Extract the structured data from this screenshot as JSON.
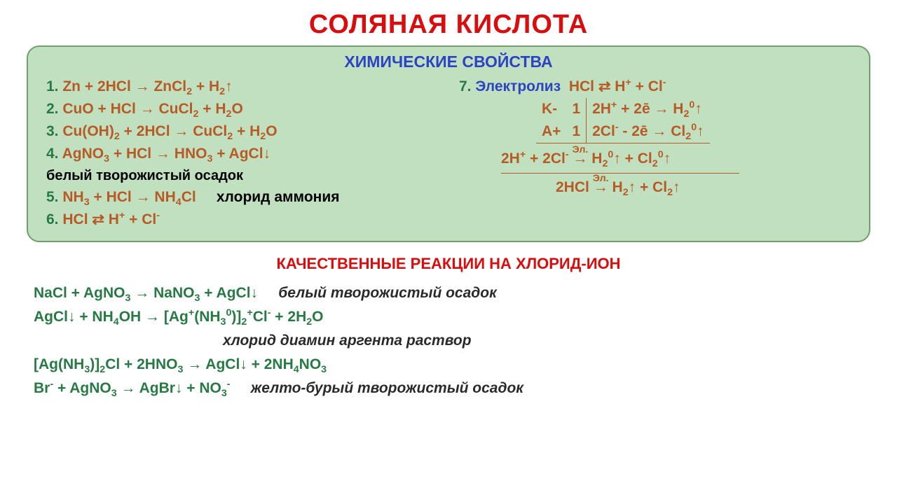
{
  "colors": {
    "title": "#d90d0d",
    "panel_bg": "#c1e0bf",
    "panel_border": "#6fa06c",
    "panel_title": "#2c44c4",
    "equation": "#b85a26",
    "number": "#287a44",
    "note": "#000000",
    "green_text": "#287a44",
    "comment": "#2a2a2a"
  },
  "title": "СОЛЯНАЯ КИСЛОТА",
  "panel": {
    "title": "ХИМИЧЕСКИЕ СВОЙСТВА",
    "left": {
      "items": [
        {
          "n": "1.",
          "lhs": "Zn + 2HCl",
          "rhs": "ZnCl",
          "rhs_sub": "2",
          "tail": " + H",
          "tail_sub": "2",
          "up": true
        },
        {
          "n": "2.",
          "lhs": "CuO + HCl",
          "rhs": "CuCl",
          "rhs_sub": "2",
          "tail": " + H",
          "tail_sub": "2",
          "extra": "O"
        },
        {
          "n": "3.",
          "lhs": "Cu(OH)",
          "lhs_sub": "2",
          "mid": " + 2HCl",
          "rhs": "CuCl",
          "rhs_sub": "2",
          "tail": " + H",
          "tail_sub": "2",
          "extra": "O"
        },
        {
          "n": "4.",
          "lhs": "AgNO",
          "lhs_sub": "3",
          "mid": " + HCl",
          "rhs": "HNO",
          "rhs_sub": "3",
          "tail": " + AgCl",
          "down": true
        }
      ],
      "note1": "белый творожистый осадок",
      "item5": {
        "n": "5.",
        "lhs": "NH",
        "lhs_sub": "3",
        "mid": " + HCl",
        "rhs": "NH",
        "rhs_sub": "4",
        "tail": "Cl"
      },
      "note2": "хлорид аммония",
      "item6": {
        "n": "6.",
        "lhs": "HCl",
        "equil": true,
        "rhs_parts": [
          "H",
          "+",
          " + Cl",
          "-"
        ]
      }
    },
    "right": {
      "n": "7.",
      "label": "Электролиз",
      "dissoc": {
        "pre": "HCl",
        "equil": true,
        "rhs": "H",
        "sup1": "+",
        "mid": " + Cl",
        "sup2": "-"
      },
      "cathode_lbl": "K-",
      "cathode_n": "1",
      "cathode": "2H⁺ + 2ē → H₂⁰↑",
      "anode_lbl": "A+",
      "anode_n": "1",
      "anode": "2Cl⁻ - 2ē → Cl₂⁰↑",
      "sum_ion": "2H⁺ + 2Cl⁻ → H₂⁰↑ + Cl₂⁰↑",
      "sum_mol": "2HCl → H₂↑ + Cl₂↑",
      "over_arrow": "Эл."
    }
  },
  "lower": {
    "title": "КАЧЕСТВЕННЫЕ РЕАКЦИИ НА ХЛОРИД-ИОН",
    "rows": [
      {
        "formula_html": "NaCl + AgNO<sub>3</sub> → NaNO<sub>3</sub> + AgCl↓",
        "comment": "белый творожистый осадок"
      },
      {
        "formula_html": "AgCl↓ + NH<sub>4</sub>OH → [Ag<sup>+</sup>(NH<sub>3</sub><sup>0</sup>)]<sub>2</sub><sup>+</sup>Cl<sup>-</sup> + 2H<sub>2</sub>O",
        "comment": ""
      },
      {
        "formula_html": "",
        "comment": "хлорид диамин аргента раствор",
        "indent": true
      },
      {
        "formula_html": "[Ag(NH<sub>3</sub>)]<sub>2</sub>Cl + 2HNO<sub>3</sub> → AgCl↓ + 2NH<sub>4</sub>NO<sub>3</sub>",
        "comment": ""
      },
      {
        "formula_html": "Br<sup>-</sup> + AgNO<sub>3</sub> → AgBr↓ + NO<sub>3</sub><sup>-</sup>",
        "comment": "желто-бурый творожистый осадок"
      }
    ]
  }
}
